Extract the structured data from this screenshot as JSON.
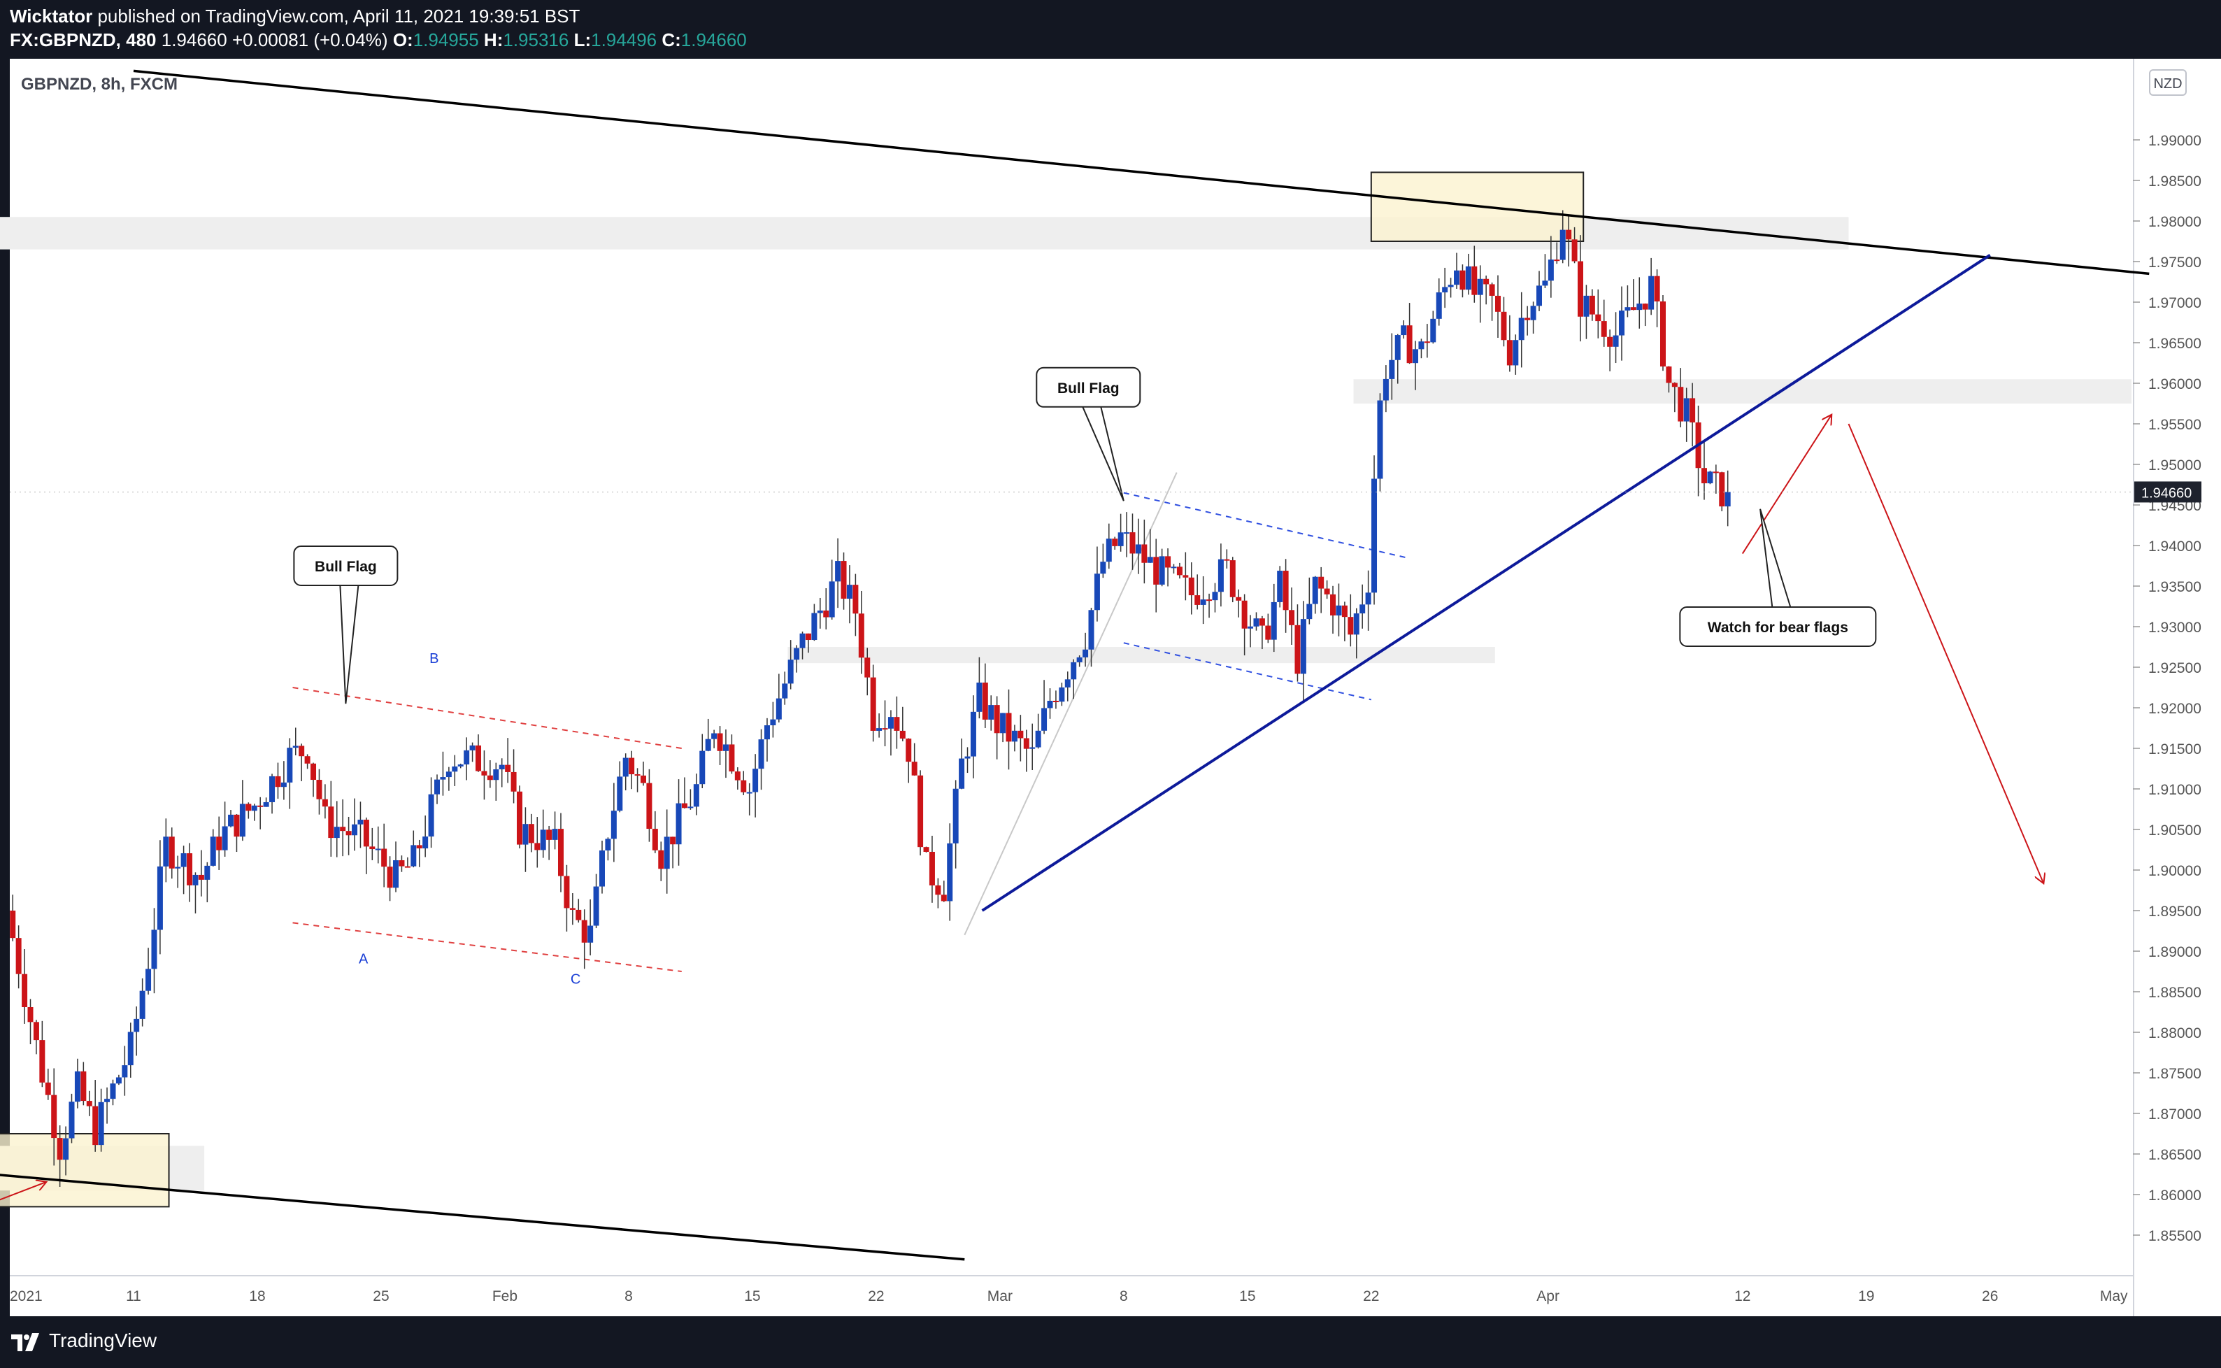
{
  "header": {
    "author": "Wicktator",
    "published_text": "published on TradingView.com, April 11, 2021 19:39:51 BST",
    "symbol": "FX:GBPNZD, 480",
    "last": "1.94660",
    "change": "+0.00081 (+0.04%)",
    "o_label": "O:",
    "o_value": "1.94955",
    "h_label": "H:",
    "h_value": "1.95316",
    "l_label": "L:",
    "l_value": "1.94496",
    "c_label": "C:",
    "c_value": "1.94660"
  },
  "footer": {
    "brand": "TradingView"
  },
  "colors": {
    "up": "#1848b8",
    "down": "#cc1418",
    "trendline": "#0d1a9a",
    "zone": "#eeeeee",
    "highlight": "#fbf3cf",
    "arrow": "#cc1418"
  },
  "chart_data": {
    "type": "candlestick",
    "title": "GBPNZD, 8h, FXCM",
    "currency_label": "NZD",
    "last_price_label": "1.94660",
    "ylim": [
      1.85,
      2.0
    ],
    "y_ticks": [
      "1.85500",
      "1.86000",
      "1.86500",
      "1.87000",
      "1.87500",
      "1.88000",
      "1.88500",
      "1.89000",
      "1.89500",
      "1.90000",
      "1.90500",
      "1.91000",
      "1.91500",
      "1.92000",
      "1.92500",
      "1.93000",
      "1.93500",
      "1.94000",
      "1.94500",
      "1.95000",
      "1.95500",
      "1.96000",
      "1.96500",
      "1.97000",
      "1.97500",
      "1.98000",
      "1.98500",
      "1.99000"
    ],
    "x_start": "2021-01-04",
    "x_end": "2021-05-04",
    "x_ticks": [
      {
        "date": "2021-01-04",
        "label": "2021"
      },
      {
        "date": "2021-01-11",
        "label": "11"
      },
      {
        "date": "2021-01-18",
        "label": "18"
      },
      {
        "date": "2021-01-25",
        "label": "25"
      },
      {
        "date": "2021-02-01",
        "label": "Feb"
      },
      {
        "date": "2021-02-08",
        "label": "8"
      },
      {
        "date": "2021-02-15",
        "label": "15"
      },
      {
        "date": "2021-02-22",
        "label": "22"
      },
      {
        "date": "2021-03-01",
        "label": "Mar"
      },
      {
        "date": "2021-03-08",
        "label": "8"
      },
      {
        "date": "2021-03-15",
        "label": "15"
      },
      {
        "date": "2021-03-22",
        "label": "22"
      },
      {
        "date": "2021-04-01",
        "label": "Apr"
      },
      {
        "date": "2021-04-12",
        "label": "12"
      },
      {
        "date": "2021-04-19",
        "label": "19"
      },
      {
        "date": "2021-04-26",
        "label": "26"
      },
      {
        "date": "2021-05-03",
        "label": "May"
      }
    ],
    "anchors": [
      {
        "date": "2021-01-04",
        "price": 1.895
      },
      {
        "date": "2021-01-05",
        "price": 1.885
      },
      {
        "date": "2021-01-06",
        "price": 1.875
      },
      {
        "date": "2021-01-07",
        "price": 1.866
      },
      {
        "date": "2021-01-08",
        "price": 1.873
      },
      {
        "date": "2021-01-09",
        "price": 1.868
      },
      {
        "date": "2021-01-11",
        "price": 1.878
      },
      {
        "date": "2021-01-12",
        "price": 1.889
      },
      {
        "date": "2021-01-13",
        "price": 1.903
      },
      {
        "date": "2021-01-15",
        "price": 1.899
      },
      {
        "date": "2021-01-16",
        "price": 1.904
      },
      {
        "date": "2021-01-18",
        "price": 1.908
      },
      {
        "date": "2021-01-20",
        "price": 1.914
      },
      {
        "date": "2021-01-21",
        "price": 1.915
      },
      {
        "date": "2021-01-22",
        "price": 1.906
      },
      {
        "date": "2021-01-24",
        "price": 1.904
      },
      {
        "date": "2021-01-26",
        "price": 1.899
      },
      {
        "date": "2021-01-27",
        "price": 1.901
      },
      {
        "date": "2021-01-29",
        "price": 1.914
      },
      {
        "date": "2021-02-01",
        "price": 1.913
      },
      {
        "date": "2021-02-02",
        "price": 1.905
      },
      {
        "date": "2021-02-04",
        "price": 1.903
      },
      {
        "date": "2021-02-05",
        "price": 1.894
      },
      {
        "date": "2021-02-06",
        "price": 1.892
      },
      {
        "date": "2021-02-07",
        "price": 1.905
      },
      {
        "date": "2021-02-08",
        "price": 1.914
      },
      {
        "date": "2021-02-09",
        "price": 1.91
      },
      {
        "date": "2021-02-10",
        "price": 1.902
      },
      {
        "date": "2021-02-12",
        "price": 1.91
      },
      {
        "date": "2021-02-13",
        "price": 1.918
      },
      {
        "date": "2021-02-15",
        "price": 1.91
      },
      {
        "date": "2021-02-16",
        "price": 1.918
      },
      {
        "date": "2021-02-18",
        "price": 1.928
      },
      {
        "date": "2021-02-20",
        "price": 1.936
      },
      {
        "date": "2021-02-21",
        "price": 1.932
      },
      {
        "date": "2021-02-22",
        "price": 1.919
      },
      {
        "date": "2021-02-23",
        "price": 1.92
      },
      {
        "date": "2021-02-24",
        "price": 1.915
      },
      {
        "date": "2021-02-25",
        "price": 1.9
      },
      {
        "date": "2021-02-26",
        "price": 1.898
      },
      {
        "date": "2021-02-27",
        "price": 1.913
      },
      {
        "date": "2021-02-28",
        "price": 1.921
      },
      {
        "date": "2021-03-01",
        "price": 1.918
      },
      {
        "date": "2021-03-03",
        "price": 1.914
      },
      {
        "date": "2021-03-04",
        "price": 1.921
      },
      {
        "date": "2021-03-06",
        "price": 1.929
      },
      {
        "date": "2021-03-07",
        "price": 1.938
      },
      {
        "date": "2021-03-08",
        "price": 1.941
      },
      {
        "date": "2021-03-10",
        "price": 1.937
      },
      {
        "date": "2021-03-12",
        "price": 1.934
      },
      {
        "date": "2021-03-14",
        "price": 1.937
      },
      {
        "date": "2021-03-15",
        "price": 1.932
      },
      {
        "date": "2021-03-16",
        "price": 1.928
      },
      {
        "date": "2021-03-17",
        "price": 1.935
      },
      {
        "date": "2021-03-18",
        "price": 1.926
      },
      {
        "date": "2021-03-19",
        "price": 1.935
      },
      {
        "date": "2021-03-20",
        "price": 1.933
      },
      {
        "date": "2021-03-21",
        "price": 1.929
      },
      {
        "date": "2021-03-22",
        "price": 1.936
      },
      {
        "date": "2021-03-22T12:00",
        "price": 1.955
      },
      {
        "date": "2021-03-23",
        "price": 1.962
      },
      {
        "date": "2021-03-24",
        "price": 1.965
      },
      {
        "date": "2021-03-25",
        "price": 1.964
      },
      {
        "date": "2021-03-26",
        "price": 1.97
      },
      {
        "date": "2021-03-27",
        "price": 1.975
      },
      {
        "date": "2021-03-28",
        "price": 1.971
      },
      {
        "date": "2021-03-29",
        "price": 1.97
      },
      {
        "date": "2021-03-30",
        "price": 1.964
      },
      {
        "date": "2021-03-31",
        "price": 1.97
      },
      {
        "date": "2021-04-01",
        "price": 1.972
      },
      {
        "date": "2021-04-02",
        "price": 1.98
      },
      {
        "date": "2021-04-03",
        "price": 1.97
      },
      {
        "date": "2021-04-04",
        "price": 1.968
      },
      {
        "date": "2021-04-05",
        "price": 1.966
      },
      {
        "date": "2021-04-06",
        "price": 1.969
      },
      {
        "date": "2021-04-07",
        "price": 1.972
      },
      {
        "date": "2021-04-08",
        "price": 1.96
      },
      {
        "date": "2021-04-09",
        "price": 1.956
      },
      {
        "date": "2021-04-10",
        "price": 1.948
      },
      {
        "date": "2021-04-11",
        "price": 1.9466
      }
    ],
    "trendlines": [
      {
        "kind": "resistance",
        "color": "#000000",
        "from": {
          "date": "2021-01-11",
          "price": 1.9985
        },
        "to": {
          "date": "2021-05-05",
          "price": 1.9735
        }
      },
      {
        "kind": "support",
        "color": "#000000",
        "from": {
          "date": "2021-01-03",
          "price": 1.8625
        },
        "to": {
          "date": "2021-02-27",
          "price": 1.852
        }
      },
      {
        "kind": "uptrend",
        "color": "#0d1a9a",
        "from": {
          "date": "2021-02-28",
          "price": 1.895
        },
        "to": {
          "date": "2021-04-26",
          "price": 1.9758
        }
      }
    ],
    "zones": [
      {
        "from": "2021-01-03",
        "to": "2021-04-18",
        "top": 1.9805,
        "bottom": 1.9765
      },
      {
        "from": "2021-03-21",
        "to": "2021-05-04",
        "top": 1.9605,
        "bottom": 1.9575
      },
      {
        "from": "2021-02-17",
        "to": "2021-03-29",
        "top": 1.9275,
        "bottom": 1.9255
      },
      {
        "from": "2021-01-03",
        "to": "2021-01-15",
        "top": 1.866,
        "bottom": 1.8605
      }
    ],
    "highlights": [
      {
        "from": "2021-03-22",
        "to": "2021-04-03",
        "top": 1.986,
        "bottom": 1.9775
      },
      {
        "from": "2021-01-03",
        "to": "2021-01-13",
        "top": 1.8675,
        "bottom": 1.8585
      }
    ],
    "channels": [
      {
        "color": "#e04040",
        "upper": [
          {
            "date": "2021-01-20",
            "price": 1.9225
          },
          {
            "date": "2021-02-11",
            "price": 1.915
          }
        ],
        "lower": [
          {
            "date": "2021-01-20",
            "price": 1.8935
          },
          {
            "date": "2021-02-11",
            "price": 1.8875
          }
        ]
      },
      {
        "color": "#3050e0",
        "upper": [
          {
            "date": "2021-03-08",
            "price": 1.9465
          },
          {
            "date": "2021-03-24",
            "price": 1.9385
          }
        ],
        "lower": [
          {
            "date": "2021-03-08",
            "price": 1.928
          },
          {
            "date": "2021-03-22",
            "price": 1.921
          }
        ]
      }
    ],
    "pattern_labels": [
      {
        "text": "B",
        "date": "2021-01-28",
        "price": 1.9255
      },
      {
        "text": "A",
        "date": "2021-01-24",
        "price": 1.8885
      },
      {
        "text": "C",
        "date": "2021-02-05",
        "price": 1.886
      }
    ],
    "callouts": [
      {
        "text": "Bull Flag",
        "box": {
          "date": "2021-01-23",
          "price": 1.9375
        },
        "tip": {
          "date": "2021-01-23",
          "price": 1.9205
        }
      },
      {
        "text": "Bull Flag",
        "box": {
          "date": "2021-03-06",
          "price": 1.9595
        },
        "tip": {
          "date": "2021-03-08",
          "price": 1.9455
        }
      },
      {
        "text": "Watch for bear flags",
        "box": {
          "date": "2021-04-14",
          "price": 1.93
        },
        "tip": {
          "date": "2021-04-13",
          "price": 1.9445
        }
      }
    ],
    "arrows": [
      {
        "from": {
          "date": "2021-04-12",
          "price": 1.939
        },
        "to": {
          "date": "2021-04-17",
          "price": 1.956
        }
      },
      {
        "from": {
          "date": "2021-04-18",
          "price": 1.955
        },
        "to": {
          "date": "2021-04-29",
          "price": 1.8985
        }
      },
      {
        "from": {
          "date": "2021-01-03",
          "price": 1.859
        },
        "to": {
          "date": "2021-01-06",
          "price": 1.8615
        }
      }
    ]
  }
}
